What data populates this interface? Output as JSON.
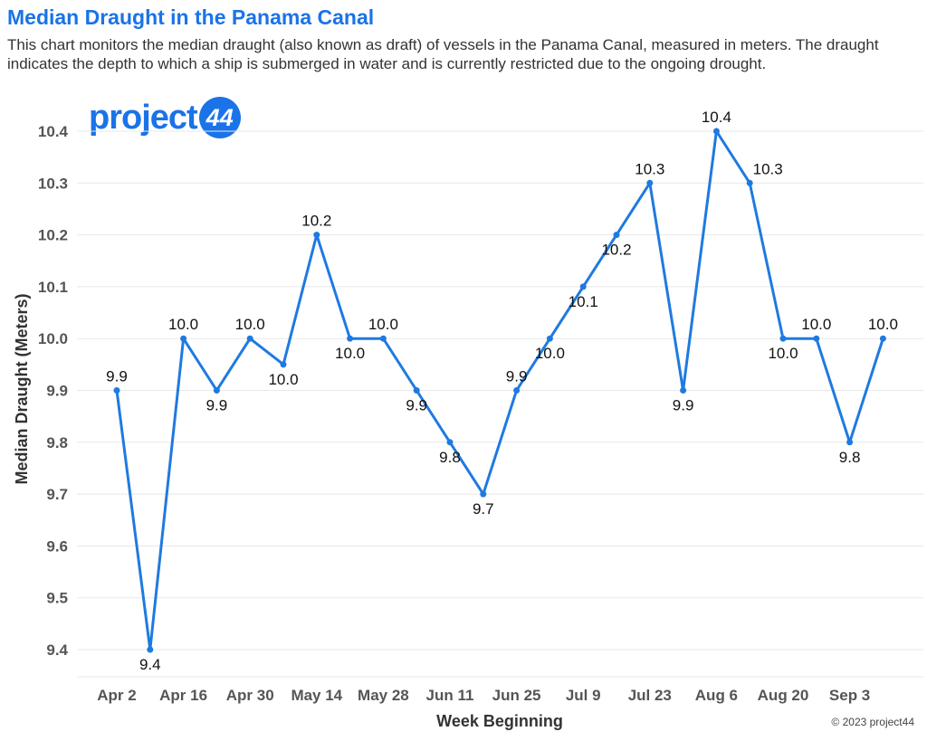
{
  "header": {
    "title": "Median Draught in the Panama Canal",
    "subtitle": "This chart monitors the median draught (also known as draft) of vessels in the Panama Canal, measured in meters. The draught indicates the depth to which a ship is submerged in water and is currently restricted due to the ongoing drought."
  },
  "logo": {
    "text": "project",
    "badge": "44"
  },
  "footer": {
    "copyright": "© 2023 project44"
  },
  "colors": {
    "accent": "#1a73e8",
    "line": "#1f7ae0",
    "grid": "#e8e8e8"
  },
  "chart_data": {
    "type": "line",
    "xlabel": "Week Beginning",
    "ylabel": "Median Draught (Meters)",
    "ylim": [
      9.4,
      10.4
    ],
    "yticks": [
      "9.4",
      "9.5",
      "9.6",
      "9.7",
      "9.8",
      "9.9",
      "10.0",
      "10.1",
      "10.2",
      "10.3",
      "10.4"
    ],
    "xticks": [
      "Apr 2",
      "Apr 16",
      "Apr 30",
      "May 14",
      "May 28",
      "Jun 11",
      "Jun 25",
      "Jul 9",
      "Jul 23",
      "Aug 6",
      "Aug 20",
      "Sep 3"
    ],
    "x": [
      "Apr 2",
      "Apr 9",
      "Apr 16",
      "Apr 23",
      "Apr 30",
      "May 7",
      "May 14",
      "May 21",
      "May 28",
      "Jun 4",
      "Jun 11",
      "Jun 18",
      "Jun 25",
      "Jul 2",
      "Jul 9",
      "Jul 16",
      "Jul 23",
      "Jul 30",
      "Aug 6",
      "Aug 13",
      "Aug 20",
      "Aug 27",
      "Sep 3",
      "Sep 10"
    ],
    "series": [
      {
        "values": [
          9.9,
          9.4,
          10.0,
          9.9,
          10.0,
          9.95,
          10.2,
          10.0,
          10.0,
          9.9,
          9.8,
          9.7,
          9.9,
          10.0,
          10.1,
          10.2,
          10.3,
          9.9,
          10.4,
          10.3,
          10.0,
          10.0,
          9.8,
          10.0
        ],
        "labels": [
          "9.9",
          "9.4",
          "10.0",
          "9.9",
          "10.0",
          "10.0",
          "10.2",
          "10.0",
          "10.0",
          "9.9",
          "9.8",
          "9.7",
          "9.9",
          "10.0",
          "10.1",
          "10.2",
          "10.3",
          "9.9",
          "10.4",
          "10.3",
          "10.0",
          "10.0",
          "9.8",
          "10.0"
        ],
        "label_positions": [
          "above",
          "below",
          "above",
          "below",
          "above",
          "below",
          "above",
          "below",
          "above",
          "below",
          "below",
          "below",
          "above",
          "below",
          "below",
          "below",
          "above",
          "below",
          "above",
          "right",
          "below",
          "above",
          "below",
          "above"
        ]
      }
    ],
    "grid": true
  }
}
